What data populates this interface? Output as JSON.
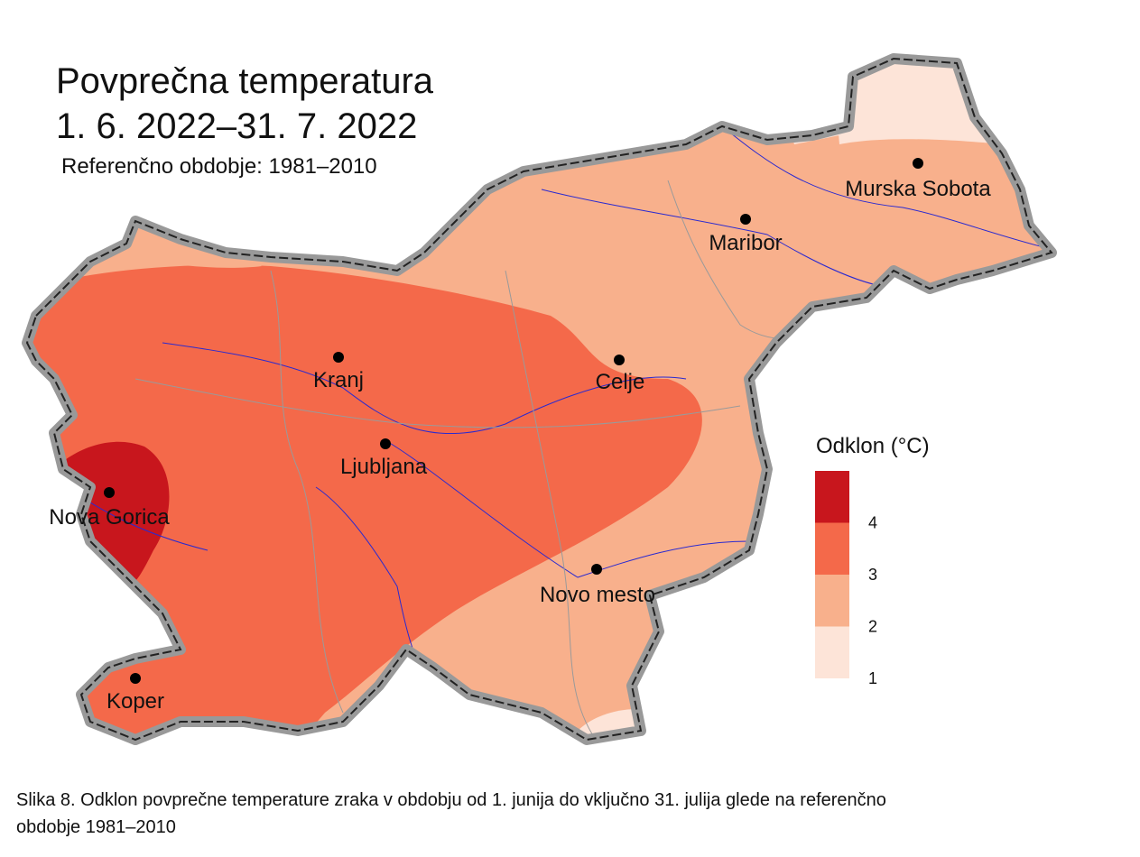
{
  "title": "Povprečna temperatura",
  "period": "1. 6. 2022–31. 7. 2022",
  "subtitle": "Referenčno obdobje: 1981–2010",
  "cities": [
    "Kranj",
    "Ljubljana",
    "Celje",
    "Maribor",
    "Murska Sobota",
    "Nova Gorica",
    "Koper",
    "Novo mesto"
  ],
  "legend": {
    "title": "Odklon (°C)",
    "ticks": [
      1,
      2,
      3,
      4
    ],
    "colors": [
      "#fde4d8",
      "#f8b08c",
      "#f4694a",
      "#c8161d"
    ]
  },
  "caption": "Slika 8. Odklon povprečne temperature zraka v obdobju od 1. junija do vključno 31. julija glede na referenčno obdobje 1981–2010"
}
